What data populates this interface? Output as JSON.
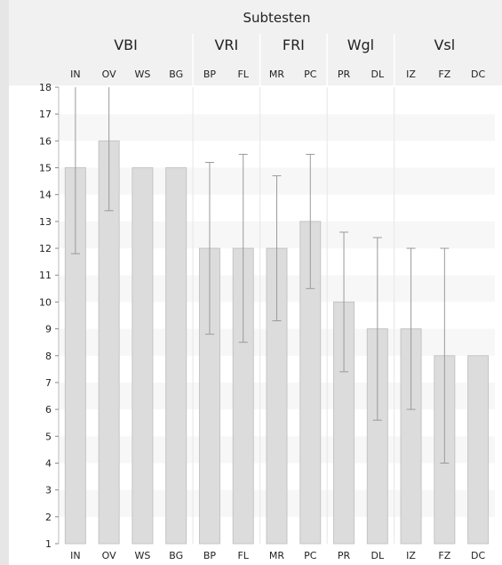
{
  "chart_data": {
    "type": "bar",
    "title": "Subtesten",
    "groups": [
      {
        "label": "VBI",
        "categories": [
          "IN",
          "OV",
          "WS",
          "BG"
        ]
      },
      {
        "label": "VRI",
        "categories": [
          "BP",
          "FL"
        ]
      },
      {
        "label": "FRI",
        "categories": [
          "MR",
          "PC"
        ]
      },
      {
        "label": "Wgl",
        "categories": [
          "PR",
          "DL"
        ]
      },
      {
        "label": "Vsl",
        "categories": [
          "IZ",
          "FZ",
          "DC"
        ]
      }
    ],
    "categories": [
      "IN",
      "OV",
      "WS",
      "BG",
      "BP",
      "FL",
      "MR",
      "PC",
      "PR",
      "DL",
      "IZ",
      "FZ",
      "DC"
    ],
    "values": [
      15,
      16,
      15,
      15,
      12,
      12,
      12,
      13,
      10,
      9,
      9,
      8,
      8
    ],
    "error_bars": [
      [
        11.8,
        18
      ],
      [
        13.4,
        18
      ],
      null,
      null,
      [
        8.8,
        15.2
      ],
      [
        8.5,
        15.5
      ],
      [
        9.3,
        14.7
      ],
      [
        10.5,
        15.5
      ],
      [
        7.4,
        12.6
      ],
      [
        5.6,
        12.4
      ],
      [
        6.0,
        12.0
      ],
      [
        4.0,
        12.0
      ],
      null
    ],
    "ylim": [
      1,
      18
    ],
    "yticks": [
      1,
      2,
      3,
      4,
      5,
      6,
      7,
      8,
      9,
      10,
      11,
      12,
      13,
      14,
      15,
      16,
      17,
      18
    ],
    "xlabel": "",
    "ylabel": "",
    "colors": {
      "bar_fill": "#dcdcdc",
      "bar_stroke": "#c4c4c4",
      "band_light": "#f7f7f7",
      "band_dark": "#ffffff",
      "header_bg": "#f1f1f1",
      "error_bar": "#9a9a9a",
      "left_strip": "#e6e6e6"
    }
  }
}
